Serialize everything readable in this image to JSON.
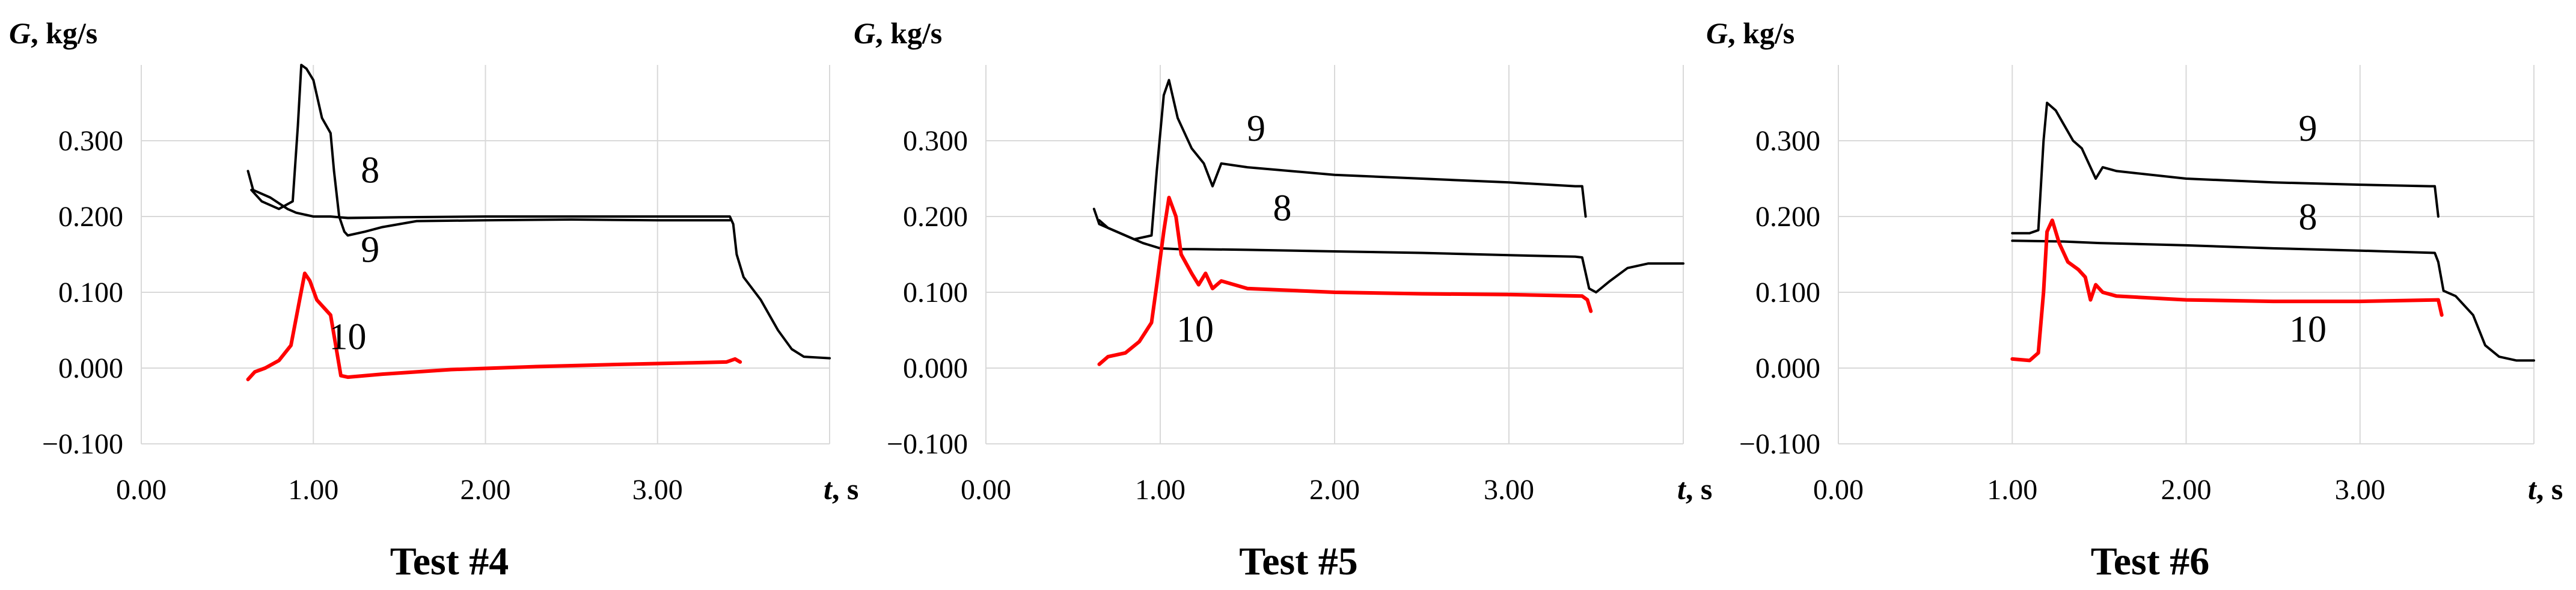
{
  "chart_data": [
    {
      "type": "line",
      "title": "Test #4",
      "ylabel": "G, kg/s",
      "xlabel": "t, s",
      "xlim": [
        0,
        4.0
      ],
      "ylim": [
        -0.1,
        0.4
      ],
      "xticks": [
        "0.00",
        "1.00",
        "2.00",
        "3.00"
      ],
      "yticks": [
        "−0.100",
        "0.000",
        "0.100",
        "0.200",
        "0.300"
      ],
      "grid": true,
      "series": [
        {
          "name": "8",
          "color": "#000000",
          "label_at": [
            1.33,
            0.245
          ],
          "points": [
            [
              0.62,
              0.26
            ],
            [
              0.65,
              0.235
            ],
            [
              0.75,
              0.225
            ],
            [
              0.85,
              0.21
            ],
            [
              0.9,
              0.205
            ],
            [
              1.0,
              0.2
            ],
            [
              1.1,
              0.2
            ],
            [
              1.2,
              0.198
            ],
            [
              1.5,
              0.199
            ],
            [
              2.0,
              0.2
            ],
            [
              2.5,
              0.2
            ],
            [
              3.0,
              0.2
            ],
            [
              3.42,
              0.2
            ],
            [
              3.44,
              0.19
            ],
            [
              3.46,
              0.15
            ],
            [
              3.5,
              0.12
            ],
            [
              3.6,
              0.09
            ],
            [
              3.7,
              0.05
            ],
            [
              3.78,
              0.025
            ],
            [
              3.85,
              0.015
            ],
            [
              4.0,
              0.013
            ]
          ]
        },
        {
          "name": "9",
          "color": "#000000",
          "label_at": [
            1.33,
            0.14
          ],
          "points": [
            [
              0.64,
              0.235
            ],
            [
              0.7,
              0.22
            ],
            [
              0.8,
              0.21
            ],
            [
              0.88,
              0.22
            ],
            [
              0.91,
              0.32
            ],
            [
              0.93,
              0.4
            ],
            [
              0.96,
              0.395
            ],
            [
              1.0,
              0.38
            ],
            [
              1.05,
              0.33
            ],
            [
              1.1,
              0.31
            ],
            [
              1.12,
              0.26
            ],
            [
              1.15,
              0.2
            ],
            [
              1.18,
              0.18
            ],
            [
              1.2,
              0.175
            ],
            [
              1.3,
              0.18
            ],
            [
              1.4,
              0.186
            ],
            [
              1.6,
              0.194
            ],
            [
              2.0,
              0.195
            ],
            [
              2.5,
              0.196
            ],
            [
              3.0,
              0.195
            ],
            [
              3.42,
              0.195
            ]
          ]
        },
        {
          "name": "10",
          "color": "#ff0000",
          "label_at": [
            1.2,
            0.025
          ],
          "points": [
            [
              0.62,
              -0.015
            ],
            [
              0.66,
              -0.005
            ],
            [
              0.72,
              0.0
            ],
            [
              0.8,
              0.01
            ],
            [
              0.87,
              0.03
            ],
            [
              0.92,
              0.09
            ],
            [
              0.95,
              0.125
            ],
            [
              0.98,
              0.115
            ],
            [
              1.02,
              0.09
            ],
            [
              1.06,
              0.08
            ],
            [
              1.1,
              0.07
            ],
            [
              1.13,
              0.03
            ],
            [
              1.16,
              -0.01
            ],
            [
              1.2,
              -0.012
            ],
            [
              1.4,
              -0.008
            ],
            [
              1.8,
              -0.002
            ],
            [
              2.3,
              0.002
            ],
            [
              2.8,
              0.005
            ],
            [
              3.2,
              0.007
            ],
            [
              3.4,
              0.008
            ],
            [
              3.45,
              0.012
            ],
            [
              3.48,
              0.008
            ]
          ]
        }
      ]
    },
    {
      "type": "line",
      "title": "Test #5",
      "ylabel": "G, kg/s",
      "xlabel": "t, s",
      "xlim": [
        0,
        4.0
      ],
      "ylim": [
        -0.1,
        0.4
      ],
      "xticks": [
        "0.00",
        "1.00",
        "2.00",
        "3.00"
      ],
      "yticks": [
        "−0.100",
        "0.000",
        "0.100",
        "0.200",
        "0.300"
      ],
      "grid": true,
      "series": [
        {
          "name": "9",
          "color": "#000000",
          "label_at": [
            1.55,
            0.3
          ],
          "points": [
            [
              0.62,
              0.21
            ],
            [
              0.65,
              0.19
            ],
            [
              0.75,
              0.18
            ],
            [
              0.85,
              0.17
            ],
            [
              0.95,
              0.175
            ],
            [
              0.98,
              0.26
            ],
            [
              1.02,
              0.36
            ],
            [
              1.05,
              0.38
            ],
            [
              1.1,
              0.33
            ],
            [
              1.18,
              0.29
            ],
            [
              1.25,
              0.27
            ],
            [
              1.3,
              0.24
            ],
            [
              1.35,
              0.27
            ],
            [
              1.5,
              0.265
            ],
            [
              2.0,
              0.255
            ],
            [
              2.5,
              0.25
            ],
            [
              3.0,
              0.245
            ],
            [
              3.38,
              0.24
            ],
            [
              3.42,
              0.24
            ],
            [
              3.44,
              0.2
            ]
          ]
        },
        {
          "name": "8",
          "color": "#000000",
          "label_at": [
            1.7,
            0.195
          ],
          "points": [
            [
              0.65,
              0.195
            ],
            [
              0.7,
              0.185
            ],
            [
              0.8,
              0.175
            ],
            [
              0.9,
              0.165
            ],
            [
              1.0,
              0.158
            ],
            [
              1.1,
              0.157
            ],
            [
              1.2,
              0.157
            ],
            [
              1.5,
              0.156
            ],
            [
              2.0,
              0.154
            ],
            [
              2.5,
              0.152
            ],
            [
              3.0,
              0.149
            ],
            [
              3.38,
              0.147
            ],
            [
              3.42,
              0.146
            ],
            [
              3.46,
              0.105
            ],
            [
              3.5,
              0.1
            ],
            [
              3.58,
              0.115
            ],
            [
              3.68,
              0.132
            ],
            [
              3.8,
              0.138
            ],
            [
              4.0,
              0.138
            ]
          ]
        },
        {
          "name": "10",
          "color": "#ff0000",
          "label_at": [
            1.2,
            0.035
          ],
          "points": [
            [
              0.65,
              0.005
            ],
            [
              0.7,
              0.015
            ],
            [
              0.8,
              0.02
            ],
            [
              0.88,
              0.035
            ],
            [
              0.95,
              0.06
            ],
            [
              0.98,
              0.11
            ],
            [
              1.02,
              0.18
            ],
            [
              1.05,
              0.225
            ],
            [
              1.09,
              0.2
            ],
            [
              1.12,
              0.15
            ],
            [
              1.18,
              0.125
            ],
            [
              1.22,
              0.11
            ],
            [
              1.26,
              0.125
            ],
            [
              1.3,
              0.105
            ],
            [
              1.35,
              0.115
            ],
            [
              1.5,
              0.105
            ],
            [
              2.0,
              0.1
            ],
            [
              2.5,
              0.098
            ],
            [
              3.0,
              0.097
            ],
            [
              3.42,
              0.095
            ],
            [
              3.45,
              0.09
            ],
            [
              3.47,
              0.075
            ]
          ]
        }
      ]
    },
    {
      "type": "line",
      "title": "Test #6",
      "ylabel": "G, kg/s",
      "xlabel": "t, s",
      "xlim": [
        0,
        4.0
      ],
      "ylim": [
        -0.1,
        0.4
      ],
      "xticks": [
        "0.00",
        "1.00",
        "2.00",
        "3.00"
      ],
      "yticks": [
        "−0.100",
        "0.000",
        "0.100",
        "0.200",
        "0.300"
      ],
      "grid": true,
      "series": [
        {
          "name": "9",
          "color": "#000000",
          "label_at": [
            2.7,
            0.3
          ],
          "points": [
            [
              1.0,
              0.178
            ],
            [
              1.1,
              0.178
            ],
            [
              1.15,
              0.182
            ],
            [
              1.18,
              0.3
            ],
            [
              1.2,
              0.35
            ],
            [
              1.25,
              0.34
            ],
            [
              1.3,
              0.32
            ],
            [
              1.35,
              0.3
            ],
            [
              1.4,
              0.29
            ],
            [
              1.45,
              0.265
            ],
            [
              1.48,
              0.25
            ],
            [
              1.52,
              0.265
            ],
            [
              1.6,
              0.26
            ],
            [
              2.0,
              0.25
            ],
            [
              2.5,
              0.245
            ],
            [
              3.0,
              0.242
            ],
            [
              3.4,
              0.24
            ],
            [
              3.43,
              0.24
            ],
            [
              3.45,
              0.2
            ]
          ]
        },
        {
          "name": "8",
          "color": "#000000",
          "label_at": [
            2.7,
            0.183
          ],
          "points": [
            [
              1.0,
              0.168
            ],
            [
              1.3,
              0.167
            ],
            [
              1.5,
              0.165
            ],
            [
              2.0,
              0.162
            ],
            [
              2.5,
              0.158
            ],
            [
              3.0,
              0.155
            ],
            [
              3.43,
              0.152
            ],
            [
              3.45,
              0.14
            ],
            [
              3.48,
              0.102
            ],
            [
              3.55,
              0.095
            ],
            [
              3.65,
              0.07
            ],
            [
              3.72,
              0.03
            ],
            [
              3.8,
              0.015
            ],
            [
              3.9,
              0.01
            ],
            [
              4.0,
              0.01
            ]
          ]
        },
        {
          "name": "10",
          "color": "#ff0000",
          "label_at": [
            2.7,
            0.035
          ],
          "points": [
            [
              1.0,
              0.012
            ],
            [
              1.1,
              0.01
            ],
            [
              1.15,
              0.02
            ],
            [
              1.18,
              0.1
            ],
            [
              1.2,
              0.18
            ],
            [
              1.23,
              0.195
            ],
            [
              1.27,
              0.165
            ],
            [
              1.32,
              0.14
            ],
            [
              1.38,
              0.13
            ],
            [
              1.42,
              0.12
            ],
            [
              1.45,
              0.09
            ],
            [
              1.48,
              0.11
            ],
            [
              1.52,
              0.1
            ],
            [
              1.6,
              0.095
            ],
            [
              2.0,
              0.09
            ],
            [
              2.5,
              0.088
            ],
            [
              3.0,
              0.088
            ],
            [
              3.45,
              0.09
            ],
            [
              3.47,
              0.07
            ]
          ]
        }
      ]
    }
  ]
}
